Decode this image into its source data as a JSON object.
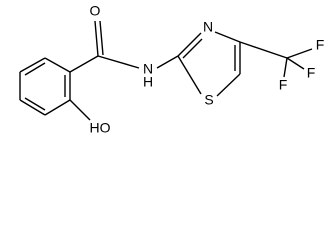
{
  "atoms": {
    "carbonyl_oxygen": "O",
    "thiazole_nitrogen": "N",
    "amide_nitrogen": "N",
    "amide_hydrogen": "H",
    "sulfur": "S",
    "fluorine_1": "F",
    "fluorine_2": "F",
    "fluorine_3": "F",
    "hydroxyl": "HO"
  }
}
